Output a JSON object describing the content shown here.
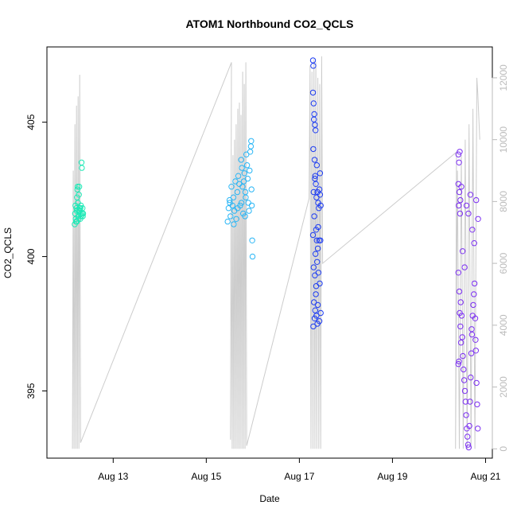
{
  "chart_data": {
    "type": "scatter",
    "title": "ATOM1 Northbound CO2_QCLS",
    "xlabel": "Date",
    "ylabel": "CO2_QCLS",
    "x_axis_type": "date",
    "xlim": [
      "2016-08-11T13:50:00",
      "2016-08-21T03:30:00"
    ],
    "x_ticks": [
      {
        "value": "2016-08-13T00:00:00",
        "label": "Aug 13"
      },
      {
        "value": "2016-08-15T00:00:00",
        "label": "Aug 15"
      },
      {
        "value": "2016-08-17T00:00:00",
        "label": "Aug 17"
      },
      {
        "value": "2016-08-19T00:00:00",
        "label": "Aug 19"
      },
      {
        "value": "2016-08-21T00:00:00",
        "label": "Aug 21"
      }
    ],
    "ylim": [
      392.5,
      407.8
    ],
    "y_ticks": [
      395,
      400,
      405
    ],
    "y2lim": [
      -300,
      13000
    ],
    "y2_ticks": [
      0,
      2000,
      4000,
      6000,
      8000,
      10000,
      12000
    ],
    "y2_color": "#bbbbbb",
    "grid": false,
    "legend": "none",
    "marker": "open-circle",
    "series": [
      {
        "color": "#1de9b6",
        "points": [
          [
            "2016-08-12T04:10:00",
            401.2
          ],
          [
            "2016-08-12T04:20:00",
            401.6
          ],
          [
            "2016-08-12T04:30:00",
            401.9
          ],
          [
            "2016-08-12T04:40:00",
            401.4
          ],
          [
            "2016-08-12T04:50:00",
            401.3
          ],
          [
            "2016-08-12T05:00:00",
            401.8
          ],
          [
            "2016-08-12T05:10:00",
            401.7
          ],
          [
            "2016-08-12T05:20:00",
            402.2
          ],
          [
            "2016-08-12T05:30:00",
            402.5
          ],
          [
            "2016-08-12T05:40:00",
            402.6
          ],
          [
            "2016-08-12T05:50:00",
            402.0
          ],
          [
            "2016-08-12T06:00:00",
            401.5
          ],
          [
            "2016-08-12T06:10:00",
            401.4
          ],
          [
            "2016-08-12T06:20:00",
            402.3
          ],
          [
            "2016-08-12T06:30:00",
            402.6
          ],
          [
            "2016-08-12T06:40:00",
            401.8
          ],
          [
            "2016-08-12T06:50:00",
            401.7
          ],
          [
            "2016-08-12T07:00:00",
            401.4
          ],
          [
            "2016-08-12T07:10:00",
            401.6
          ],
          [
            "2016-08-12T07:20:00",
            401.9
          ],
          [
            "2016-08-12T07:30:00",
            401.5
          ],
          [
            "2016-08-12T07:40:00",
            403.5
          ],
          [
            "2016-08-12T07:50:00",
            403.3
          ],
          [
            "2016-08-12T08:00:00",
            401.6
          ],
          [
            "2016-08-12T08:10:00",
            401.8
          ],
          [
            "2016-08-12T08:20:00",
            401.5
          ],
          [
            "2016-08-12T08:30:00",
            401.6
          ],
          [
            "2016-08-12T05:15:00",
            401.3
          ],
          [
            "2016-08-12T06:05:00",
            401.7
          ],
          [
            "2016-08-12T07:05:00",
            401.8
          ]
        ]
      },
      {
        "color": "#29b6f6",
        "points": [
          [
            "2016-08-15T11:00:00",
            401.3
          ],
          [
            "2016-08-15T11:30:00",
            401.8
          ],
          [
            "2016-08-15T12:00:00",
            402.1
          ],
          [
            "2016-08-15T12:30:00",
            401.5
          ],
          [
            "2016-08-15T13:00:00",
            402.6
          ],
          [
            "2016-08-15T13:30:00",
            401.9
          ],
          [
            "2016-08-15T14:00:00",
            402.2
          ],
          [
            "2016-08-15T14:30:00",
            401.7
          ],
          [
            "2016-08-15T15:00:00",
            402.8
          ],
          [
            "2016-08-15T15:30:00",
            401.4
          ],
          [
            "2016-08-15T16:00:00",
            402.4
          ],
          [
            "2016-08-15T16:30:00",
            403.0
          ],
          [
            "2016-08-15T17:00:00",
            402.7
          ],
          [
            "2016-08-15T17:30:00",
            401.9
          ],
          [
            "2016-08-15T18:00:00",
            403.6
          ],
          [
            "2016-08-15T18:20:00",
            403.3
          ],
          [
            "2016-08-15T18:40:00",
            402.6
          ],
          [
            "2016-08-15T19:00:00",
            401.6
          ],
          [
            "2016-08-15T19:20:00",
            402.8
          ],
          [
            "2016-08-15T19:40:00",
            403.1
          ],
          [
            "2016-08-15T20:00:00",
            401.5
          ],
          [
            "2016-08-15T20:20:00",
            402.2
          ],
          [
            "2016-08-15T20:40:00",
            403.8
          ],
          [
            "2016-08-15T21:00:00",
            403.4
          ],
          [
            "2016-08-15T21:20:00",
            402.9
          ],
          [
            "2016-08-15T21:40:00",
            402.0
          ],
          [
            "2016-08-15T22:00:00",
            401.7
          ],
          [
            "2016-08-15T22:20:00",
            403.2
          ],
          [
            "2016-08-15T22:40:00",
            403.9
          ],
          [
            "2016-08-15T23:00:00",
            404.1
          ],
          [
            "2016-08-15T23:10:00",
            404.3
          ],
          [
            "2016-08-15T23:20:00",
            402.5
          ],
          [
            "2016-08-15T23:30:00",
            401.9
          ],
          [
            "2016-08-15T23:40:00",
            400.6
          ],
          [
            "2016-08-15T23:50:00",
            400.0
          ],
          [
            "2016-08-15T14:10:00",
            401.2
          ],
          [
            "2016-08-15T16:10:00",
            401.8
          ],
          [
            "2016-08-15T18:10:00",
            402.0
          ],
          [
            "2016-08-15T20:10:00",
            402.4
          ],
          [
            "2016-08-15T12:10:00",
            402.0
          ]
        ]
      },
      {
        "color": "#1e3df2",
        "points": [
          [
            "2016-08-17T07:00:00",
            407.3
          ],
          [
            "2016-08-17T07:10:00",
            407.1
          ],
          [
            "2016-08-17T07:00:00",
            406.1
          ],
          [
            "2016-08-17T07:20:00",
            405.7
          ],
          [
            "2016-08-17T07:40:00",
            405.3
          ],
          [
            "2016-08-17T08:00:00",
            404.9
          ],
          [
            "2016-08-17T07:30:00",
            405.1
          ],
          [
            "2016-08-17T08:20:00",
            404.7
          ],
          [
            "2016-08-17T07:10:00",
            404.0
          ],
          [
            "2016-08-17T07:50:00",
            403.6
          ],
          [
            "2016-08-17T08:10:00",
            403.0
          ],
          [
            "2016-08-17T08:30:00",
            402.7
          ],
          [
            "2016-08-17T07:20:00",
            402.4
          ],
          [
            "2016-08-17T08:50:00",
            402.2
          ],
          [
            "2016-08-17T09:20:00",
            402.4
          ],
          [
            "2016-08-17T09:40:00",
            402.0
          ],
          [
            "2016-08-17T10:00:00",
            401.8
          ],
          [
            "2016-08-17T10:20:00",
            402.5
          ],
          [
            "2016-08-17T10:40:00",
            402.3
          ],
          [
            "2016-08-17T11:00:00",
            401.9
          ],
          [
            "2016-08-17T07:40:00",
            401.5
          ],
          [
            "2016-08-17T08:40:00",
            401.0
          ],
          [
            "2016-08-17T09:00:00",
            400.6
          ],
          [
            "2016-08-17T09:30:00",
            400.3
          ],
          [
            "2016-08-17T10:10:00",
            400.6
          ],
          [
            "2016-08-17T10:50:00",
            400.6
          ],
          [
            "2016-08-17T07:20:00",
            399.6
          ],
          [
            "2016-08-17T08:00:00",
            399.3
          ],
          [
            "2016-08-17T08:40:00",
            398.9
          ],
          [
            "2016-08-17T09:10:00",
            399.8
          ],
          [
            "2016-08-17T09:50:00",
            399.4
          ],
          [
            "2016-08-17T10:30:00",
            399.0
          ],
          [
            "2016-08-17T07:30:00",
            398.3
          ],
          [
            "2016-08-17T08:10:00",
            398.0
          ],
          [
            "2016-08-17T08:30:00",
            398.6
          ],
          [
            "2016-08-17T08:50:00",
            397.8
          ],
          [
            "2016-08-17T09:30:00",
            398.2
          ],
          [
            "2016-08-17T07:10:00",
            397.4
          ],
          [
            "2016-08-17T07:50:00",
            397.7
          ],
          [
            "2016-08-17T10:20:00",
            397.6
          ],
          [
            "2016-08-17T11:00:00",
            397.9
          ],
          [
            "2016-08-17T09:20:00",
            397.5
          ],
          [
            "2016-08-17T08:20:00",
            400.1
          ],
          [
            "2016-08-17T09:40:00",
            401.1
          ],
          [
            "2016-08-17T10:40:00",
            403.1
          ],
          [
            "2016-08-17T07:00:00",
            400.8
          ],
          [
            "2016-08-17T08:00:00",
            402.9
          ],
          [
            "2016-08-17T09:00:00",
            403.4
          ]
        ]
      },
      {
        "color": "#7c2ff2",
        "points": [
          [
            "2016-08-20T10:00:00",
            403.8
          ],
          [
            "2016-08-20T10:40:00",
            403.9
          ],
          [
            "2016-08-20T10:20:00",
            403.5
          ],
          [
            "2016-08-20T10:00:00",
            402.7
          ],
          [
            "2016-08-20T10:30:00",
            402.4
          ],
          [
            "2016-08-20T11:00:00",
            402.1
          ],
          [
            "2016-08-20T10:10:00",
            401.9
          ],
          [
            "2016-08-20T10:50:00",
            401.6
          ],
          [
            "2016-08-20T10:00:00",
            399.4
          ],
          [
            "2016-08-20T10:30:00",
            398.7
          ],
          [
            "2016-08-20T11:10:00",
            398.3
          ],
          [
            "2016-08-20T10:40:00",
            397.9
          ],
          [
            "2016-08-20T11:00:00",
            397.4
          ],
          [
            "2016-08-20T10:00:00",
            396.0
          ],
          [
            "2016-08-20T10:20:00",
            396.1
          ],
          [
            "2016-08-20T11:20:00",
            396.8
          ],
          [
            "2016-08-20T11:40:00",
            397.8
          ],
          [
            "2016-08-20T12:00:00",
            397.0
          ],
          [
            "2016-08-20T12:20:00",
            396.3
          ],
          [
            "2016-08-20T12:40:00",
            395.8
          ],
          [
            "2016-08-20T13:00:00",
            395.4
          ],
          [
            "2016-08-20T13:20:00",
            395.0
          ],
          [
            "2016-08-20T13:40:00",
            394.6
          ],
          [
            "2016-08-20T14:00:00",
            394.1
          ],
          [
            "2016-08-20T14:20:00",
            393.6
          ],
          [
            "2016-08-20T14:40:00",
            393.3
          ],
          [
            "2016-08-20T15:00:00",
            393.0
          ],
          [
            "2016-08-20T15:20:00",
            392.9
          ],
          [
            "2016-08-20T15:40:00",
            393.7
          ],
          [
            "2016-08-20T16:00:00",
            394.6
          ],
          [
            "2016-08-20T16:20:00",
            395.5
          ],
          [
            "2016-08-20T16:40:00",
            396.4
          ],
          [
            "2016-08-20T17:00:00",
            397.1
          ],
          [
            "2016-08-20T17:20:00",
            397.8
          ],
          [
            "2016-08-20T17:40:00",
            398.2
          ],
          [
            "2016-08-20T18:00:00",
            398.6
          ],
          [
            "2016-08-20T18:20:00",
            399.0
          ],
          [
            "2016-08-20T18:40:00",
            397.7
          ],
          [
            "2016-08-20T19:00:00",
            396.5
          ],
          [
            "2016-08-20T19:20:00",
            395.3
          ],
          [
            "2016-08-20T19:40:00",
            394.5
          ],
          [
            "2016-08-20T20:00:00",
            393.6
          ],
          [
            "2016-08-20T14:10:00",
            401.9
          ],
          [
            "2016-08-20T15:10:00",
            401.6
          ],
          [
            "2016-08-20T16:10:00",
            402.3
          ],
          [
            "2016-08-20T17:10:00",
            401.0
          ],
          [
            "2016-08-20T18:10:00",
            400.5
          ],
          [
            "2016-08-20T19:10:00",
            402.1
          ],
          [
            "2016-08-20T20:10:00",
            401.4
          ],
          [
            "2016-08-20T13:10:00",
            399.6
          ],
          [
            "2016-08-20T12:10:00",
            400.2
          ],
          [
            "2016-08-20T11:30:00",
            402.6
          ],
          [
            "2016-08-20T16:50:00",
            397.3
          ],
          [
            "2016-08-20T18:50:00",
            396.9
          ]
        ]
      }
    ],
    "secondary_line": {
      "color": "#cccccc",
      "axis": "right",
      "points": [
        [
          "2016-08-12T03:00:00",
          0
        ],
        [
          "2016-08-12T03:25:00",
          9000
        ],
        [
          "2016-08-12T03:50:00",
          0
        ],
        [
          "2016-08-12T04:15:00",
          10500
        ],
        [
          "2016-08-12T04:40:00",
          0
        ],
        [
          "2016-08-12T05:05:00",
          11100
        ],
        [
          "2016-08-12T05:30:00",
          0
        ],
        [
          "2016-08-12T05:55:00",
          11400
        ],
        [
          "2016-08-12T06:20:00",
          0
        ],
        [
          "2016-08-12T06:45:00",
          12100
        ],
        [
          "2016-08-12T07:10:00",
          200
        ],
        [
          "2016-08-15T13:00:00",
          12500
        ],
        [
          "2016-08-15T12:30:00",
          300
        ],
        [
          "2016-08-15T12:55:00",
          8500
        ],
        [
          "2016-08-15T13:20:00",
          0
        ],
        [
          "2016-08-15T13:45:00",
          9500
        ],
        [
          "2016-08-15T14:10:00",
          0
        ],
        [
          "2016-08-15T14:35:00",
          10000
        ],
        [
          "2016-08-15T15:00:00",
          0
        ],
        [
          "2016-08-15T15:25:00",
          10500
        ],
        [
          "2016-08-15T15:50:00",
          0
        ],
        [
          "2016-08-15T16:15:00",
          11000
        ],
        [
          "2016-08-15T16:40:00",
          0
        ],
        [
          "2016-08-15T17:05:00",
          11200
        ],
        [
          "2016-08-15T17:30:00",
          0
        ],
        [
          "2016-08-15T17:55:00",
          10800
        ],
        [
          "2016-08-15T18:20:00",
          0
        ],
        [
          "2016-08-15T18:45:00",
          12200
        ],
        [
          "2016-08-15T19:10:00",
          0
        ],
        [
          "2016-08-15T19:35:00",
          11800
        ],
        [
          "2016-08-15T20:00:00",
          0
        ],
        [
          "2016-08-15T20:25:00",
          12500
        ],
        [
          "2016-08-15T20:50:00",
          100
        ],
        [
          "2016-08-17T05:00:00",
          8100
        ],
        [
          "2016-08-17T05:30:00",
          12400
        ],
        [
          "2016-08-17T06:00:00",
          0
        ],
        [
          "2016-08-17T06:30:00",
          12200
        ],
        [
          "2016-08-17T07:00:00",
          0
        ],
        [
          "2016-08-17T07:30:00",
          12600
        ],
        [
          "2016-08-17T08:00:00",
          0
        ],
        [
          "2016-08-17T08:30:00",
          12500
        ],
        [
          "2016-08-17T09:00:00",
          0
        ],
        [
          "2016-08-17T09:30:00",
          12000
        ],
        [
          "2016-08-17T10:00:00",
          0
        ],
        [
          "2016-08-17T10:30:00",
          11800
        ],
        [
          "2016-08-17T11:00:00",
          0
        ],
        [
          "2016-08-17T11:30:00",
          12700
        ],
        [
          "2016-08-17T12:00:00",
          6000
        ],
        [
          "2016-08-20T09:00:00",
          9600
        ],
        [
          "2016-08-20T08:30:00",
          0
        ],
        [
          "2016-08-20T09:30:00",
          9000
        ],
        [
          "2016-08-20T10:30:00",
          0
        ],
        [
          "2016-08-20T11:30:00",
          9500
        ],
        [
          "2016-08-20T12:30:00",
          0
        ],
        [
          "2016-08-20T13:30:00",
          10000
        ],
        [
          "2016-08-20T14:30:00",
          0
        ],
        [
          "2016-08-20T15:30:00",
          10500
        ],
        [
          "2016-08-20T16:30:00",
          0
        ],
        [
          "2016-08-20T17:30:00",
          11000
        ],
        [
          "2016-08-20T18:30:00",
          0
        ],
        [
          "2016-08-20T19:30:00",
          12000
        ],
        [
          "2016-08-20T20:00:00",
          11500
        ],
        [
          "2016-08-20T21:00:00",
          10000
        ]
      ]
    }
  }
}
